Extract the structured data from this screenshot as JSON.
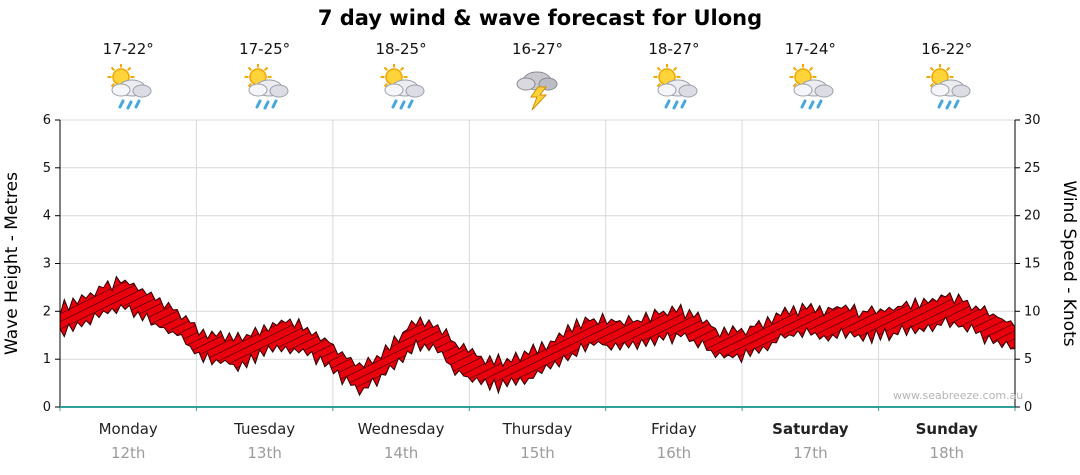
{
  "title": "7 day wind & wave forecast for Ulong",
  "watermark": "www.seabreeze.com.au",
  "y_left": {
    "label": "Wave Height - Metres",
    "ticks": [
      0,
      1,
      2,
      3,
      4,
      5,
      6
    ]
  },
  "y_right": {
    "label": "Wind Speed - Knots",
    "ticks": [
      0,
      5,
      10,
      15,
      20,
      25,
      30
    ]
  },
  "days": [
    {
      "name": "Monday",
      "date": "12th",
      "temp": "17-22°",
      "icon": "sun-cloud-rain",
      "bold": false
    },
    {
      "name": "Tuesday",
      "date": "13th",
      "temp": "17-25°",
      "icon": "sun-cloud-rain",
      "bold": false
    },
    {
      "name": "Wednesday",
      "date": "14th",
      "temp": "18-25°",
      "icon": "sun-cloud-rain",
      "bold": false
    },
    {
      "name": "Thursday",
      "date": "15th",
      "temp": "16-27°",
      "icon": "storm",
      "bold": false
    },
    {
      "name": "Friday",
      "date": "16th",
      "temp": "18-27°",
      "icon": "sun-cloud-rain",
      "bold": false
    },
    {
      "name": "Saturday",
      "date": "17th",
      "temp": "17-24°",
      "icon": "sun-cloud-rain",
      "bold": true
    },
    {
      "name": "Sunday",
      "date": "18th",
      "temp": "16-22°",
      "icon": "sun-cloud-rain",
      "bold": true
    }
  ],
  "chart_data": {
    "type": "area",
    "title": "7 day wind & wave forecast for Ulong",
    "x_unit": "days from Monday 12th (0) to Sunday 18th (7)",
    "ylabel_left": "Wave Height - Metres",
    "ylabel_right": "Wind Speed - Knots",
    "ylim_left": [
      0,
      6
    ],
    "ylim_right": [
      0,
      30
    ],
    "grid": true,
    "band_half_width_m": 0.27,
    "series": [
      {
        "name": "Wave height (m) / wind band centreline",
        "points": [
          [
            0.0,
            1.8
          ],
          [
            0.15,
            2.0
          ],
          [
            0.3,
            2.2
          ],
          [
            0.45,
            2.35
          ],
          [
            0.55,
            2.25
          ],
          [
            0.7,
            2.0
          ],
          [
            0.85,
            1.8
          ],
          [
            1.0,
            1.35
          ],
          [
            1.15,
            1.2
          ],
          [
            1.3,
            1.15
          ],
          [
            1.45,
            1.3
          ],
          [
            1.6,
            1.55
          ],
          [
            1.75,
            1.45
          ],
          [
            1.9,
            1.25
          ],
          [
            2.0,
            1.05
          ],
          [
            2.1,
            0.8
          ],
          [
            2.2,
            0.6
          ],
          [
            2.35,
            0.85
          ],
          [
            2.5,
            1.25
          ],
          [
            2.62,
            1.6
          ],
          [
            2.75,
            1.45
          ],
          [
            2.9,
            1.05
          ],
          [
            3.05,
            0.8
          ],
          [
            3.2,
            0.7
          ],
          [
            3.35,
            0.75
          ],
          [
            3.5,
            0.95
          ],
          [
            3.65,
            1.2
          ],
          [
            3.8,
            1.45
          ],
          [
            3.95,
            1.6
          ],
          [
            4.1,
            1.5
          ],
          [
            4.25,
            1.55
          ],
          [
            4.4,
            1.7
          ],
          [
            4.55,
            1.75
          ],
          [
            4.7,
            1.55
          ],
          [
            4.85,
            1.3
          ],
          [
            5.0,
            1.3
          ],
          [
            5.15,
            1.5
          ],
          [
            5.3,
            1.7
          ],
          [
            5.45,
            1.8
          ],
          [
            5.6,
            1.75
          ],
          [
            5.75,
            1.8
          ],
          [
            5.9,
            1.72
          ],
          [
            6.05,
            1.78
          ],
          [
            6.2,
            1.85
          ],
          [
            6.35,
            1.95
          ],
          [
            6.5,
            2.05
          ],
          [
            6.65,
            1.9
          ],
          [
            6.8,
            1.7
          ],
          [
            6.95,
            1.5
          ],
          [
            7.0,
            1.45
          ]
        ]
      }
    ],
    "colors": {
      "band_fill": "#e8000d",
      "band_outline": "#2a0000",
      "band_hatch": "#26060a",
      "grid": "#d9d9d9",
      "axis": "#000000",
      "baseline": "#2fa098",
      "date_text": "#9b9b9b",
      "watermark": "#b5b5b5"
    }
  }
}
